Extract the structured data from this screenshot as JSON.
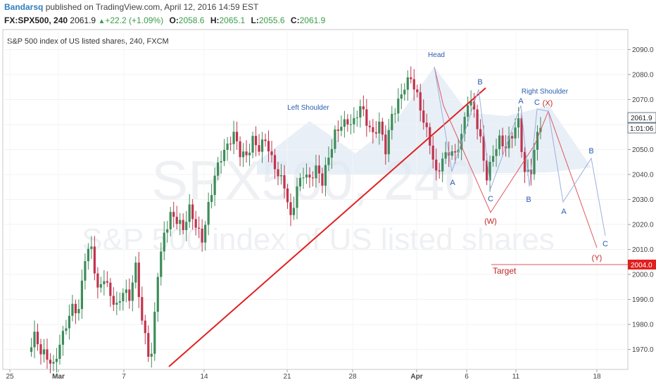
{
  "header": {
    "author": "Bandarsq",
    "published": "published on TradingView.com, April 12, 2016 14:59 EST",
    "symbol": "FX:SPX500, 240",
    "last": "2061.9",
    "change": "+22.2 (+1.09%)",
    "open_label": "O:",
    "open": "2058.6",
    "high_label": "H:",
    "high": "2065.1",
    "low_label": "L:",
    "low": "2055.6",
    "close_label": "C:",
    "close": "2061.9",
    "up_arrow": "▲"
  },
  "chart_title": "S&P 500 index of US listed shares, 240, FXCM",
  "watermark": {
    "line1": "SPX500, 240",
    "line2": "S&P 500 index of US listed shares"
  },
  "price_labels": {
    "last": "2061.9",
    "countdown": "1:01:06",
    "target": "2004.0"
  },
  "colors": {
    "up_candle": "#3d8c5a",
    "down_candle": "#c0344d",
    "trendline": "#e0201f",
    "wave_red": "#e0565e",
    "wave_blue": "#9db0dc",
    "label_blue": "#2a5db0",
    "label_red": "#c32424",
    "pattern_fill": "#dbe7f2"
  },
  "chart_data": {
    "type": "candlestick",
    "title": "S&P 500 index of US listed shares, 240, FXCM",
    "symbol": "FX:SPX500",
    "interval": "240",
    "x_tick_labels": [
      "25",
      "Mar",
      "7",
      "14",
      "21",
      "28",
      "Apr",
      "6",
      "11",
      "18"
    ],
    "y_range": [
      1962,
      2098
    ],
    "y_tick_labels": [
      "1970.0",
      "1980.0",
      "1990.0",
      "2000.0",
      "2010.0",
      "2020.0",
      "2030.0",
      "2040.0",
      "2050.0",
      "2060.0",
      "2070.0",
      "2080.0",
      "2090.0"
    ],
    "y_ticks": [
      1970,
      1980,
      1990,
      2000,
      2010,
      2020,
      2030,
      2040,
      2050,
      2060,
      2070,
      2080,
      2090
    ],
    "last_ohlc": {
      "open": 2058.6,
      "high": 2065.1,
      "low": 2055.6,
      "close": 2061.9
    },
    "target": 2004.0,
    "price_path": [
      [
        0,
        1969
      ],
      [
        2,
        1973
      ],
      [
        4,
        1966
      ],
      [
        8,
        1964
      ],
      [
        10,
        1975
      ],
      [
        12,
        1983
      ],
      [
        14,
        1988
      ],
      [
        16,
        1984
      ],
      [
        18,
        2004
      ],
      [
        20,
        2008
      ],
      [
        22,
        1993
      ],
      [
        24,
        2001
      ],
      [
        26,
        1995
      ],
      [
        28,
        1989
      ],
      [
        30,
        1993
      ],
      [
        32,
        1988
      ],
      [
        34,
        2000
      ],
      [
        36,
        1980
      ],
      [
        38,
        1970
      ],
      [
        39,
        1970
      ],
      [
        41,
        2004
      ],
      [
        43,
        2018
      ],
      [
        45,
        2023
      ],
      [
        47,
        2019
      ],
      [
        49,
        2015
      ],
      [
        51,
        2025
      ],
      [
        53,
        2021
      ],
      [
        55,
        2017
      ],
      [
        57,
        2030
      ],
      [
        59,
        2040
      ],
      [
        61,
        2045
      ],
      [
        63,
        2048
      ],
      [
        65,
        2054
      ],
      [
        67,
        2049
      ],
      [
        69,
        2050
      ],
      [
        71,
        2057
      ],
      [
        73,
        2052
      ],
      [
        75,
        2053
      ],
      [
        77,
        2043
      ],
      [
        79,
        2037
      ],
      [
        81,
        2035
      ],
      [
        83,
        2024
      ],
      [
        85,
        2038
      ],
      [
        87,
        2043
      ],
      [
        89,
        2038
      ],
      [
        91,
        2040
      ],
      [
        93,
        2034
      ],
      [
        95,
        2045
      ],
      [
        97,
        2057
      ],
      [
        99,
        2063
      ],
      [
        101,
        2064
      ],
      [
        103,
        2062
      ],
      [
        105,
        2066
      ],
      [
        107,
        2058
      ],
      [
        109,
        2053
      ],
      [
        111,
        2060
      ],
      [
        113,
        2052
      ],
      [
        115,
        2067
      ],
      [
        117,
        2071
      ],
      [
        119,
        2075
      ],
      [
        121,
        2076
      ],
      [
        123,
        2068
      ],
      [
        125,
        2060
      ],
      [
        127,
        2054
      ],
      [
        129,
        2043
      ],
      [
        131,
        2049
      ],
      [
        133,
        2050
      ],
      [
        135,
        2046
      ],
      [
        137,
        2052
      ],
      [
        139,
        2067
      ],
      [
        141,
        2066
      ],
      [
        143,
        2056
      ],
      [
        145,
        2042
      ],
      [
        147,
        2050
      ],
      [
        149,
        2053
      ],
      [
        151,
        2048
      ],
      [
        153,
        2053
      ],
      [
        155,
        2060
      ],
      [
        157,
        2042
      ],
      [
        159,
        2045
      ],
      [
        161,
        2059
      ],
      [
        162,
        2062
      ]
    ],
    "trendline": {
      "from": [
        "Mar 10",
        1965
      ],
      "to": [
        "Apr 7",
        2073
      ]
    },
    "pattern_labels": [
      "Head",
      "Left Shoulder",
      "Right Shoulder"
    ],
    "target_label": "Target",
    "wave_labels": {
      "blue": [
        "A",
        "B",
        "C",
        "A",
        "B",
        "C",
        "A",
        "B",
        "C"
      ],
      "red": [
        "(W)",
        "(X)",
        "(Y)"
      ]
    }
  }
}
